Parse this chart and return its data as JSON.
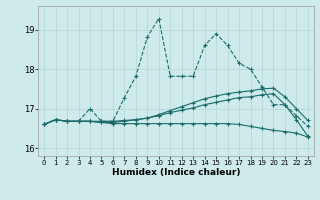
{
  "xlabel": "Humidex (Indice chaleur)",
  "xlim": [
    -0.5,
    23.5
  ],
  "ylim": [
    15.8,
    19.6
  ],
  "yticks": [
    16,
    17,
    18,
    19
  ],
  "xticks": [
    0,
    1,
    2,
    3,
    4,
    5,
    6,
    7,
    8,
    9,
    10,
    11,
    12,
    13,
    14,
    15,
    16,
    17,
    18,
    19,
    20,
    21,
    22,
    23
  ],
  "bg_color": "#ceeaea",
  "grid_color": "#b8d8d8",
  "line_color": "#1a6b6b",
  "line1": [
    16.6,
    16.72,
    16.68,
    16.68,
    17.0,
    16.68,
    16.68,
    17.28,
    17.82,
    18.82,
    19.28,
    17.82,
    17.82,
    17.82,
    18.6,
    18.9,
    18.6,
    18.15,
    18.0,
    17.55,
    17.1,
    17.1,
    16.82,
    16.55
  ],
  "line2": [
    16.6,
    16.72,
    16.68,
    16.68,
    16.68,
    16.68,
    16.68,
    16.7,
    16.72,
    16.76,
    16.82,
    16.9,
    16.96,
    17.02,
    17.1,
    17.16,
    17.22,
    17.28,
    17.3,
    17.35,
    17.38,
    17.1,
    16.72,
    16.3
  ],
  "line3": [
    16.6,
    16.72,
    16.68,
    16.68,
    16.68,
    16.65,
    16.65,
    16.68,
    16.72,
    16.76,
    16.85,
    16.95,
    17.05,
    17.15,
    17.25,
    17.32,
    17.38,
    17.42,
    17.45,
    17.5,
    17.52,
    17.3,
    17.0,
    16.7
  ],
  "line4": [
    16.6,
    16.72,
    16.68,
    16.68,
    16.68,
    16.65,
    16.62,
    16.62,
    16.62,
    16.62,
    16.62,
    16.62,
    16.62,
    16.62,
    16.62,
    16.62,
    16.62,
    16.6,
    16.55,
    16.5,
    16.45,
    16.42,
    16.38,
    16.28
  ]
}
